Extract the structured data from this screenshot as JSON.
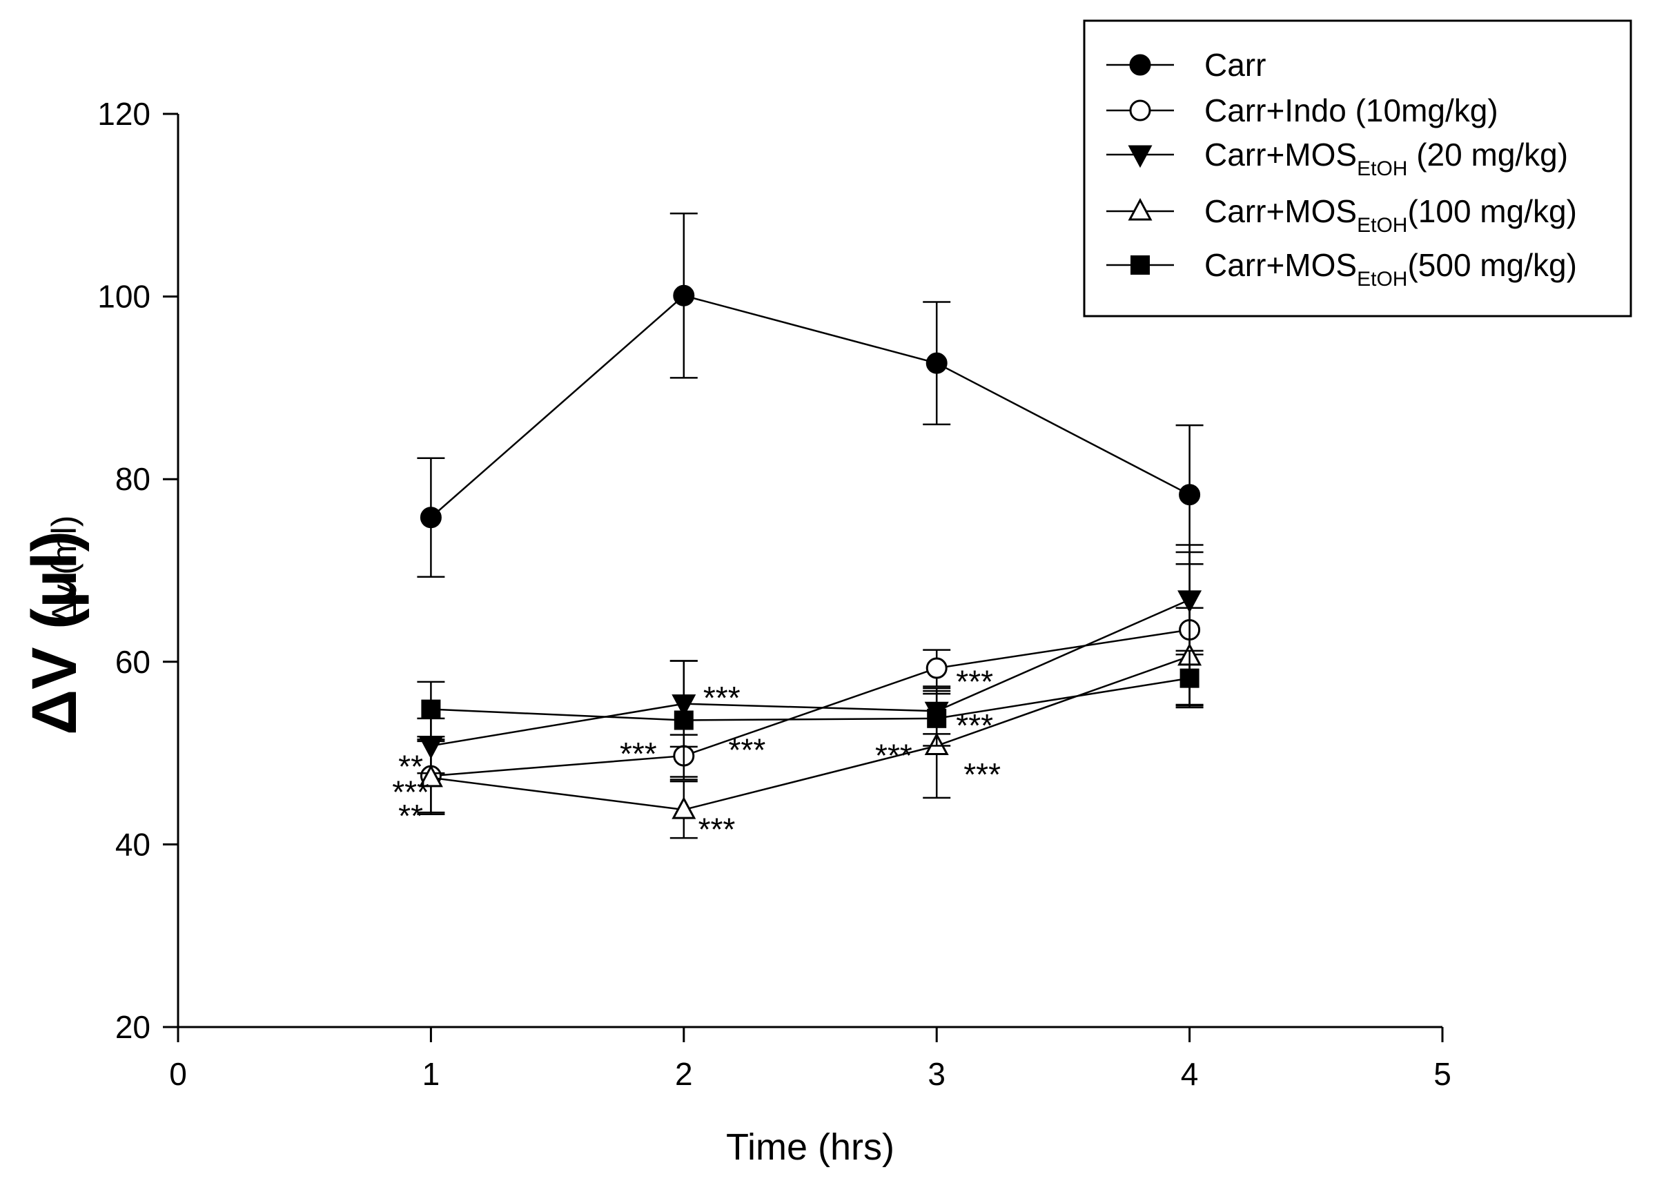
{
  "chart_data": {
    "type": "line",
    "title": "",
    "xlabel": "Time (hrs)",
    "ylabel_main": "ΔV (μl)",
    "ylabel_secondary": "Δv (ml)",
    "xlim": [
      0,
      5
    ],
    "ylim": [
      20,
      120
    ],
    "xticks": [
      "0",
      "1",
      "2",
      "3",
      "4",
      "5"
    ],
    "yticks": [
      "20",
      "40",
      "60",
      "80",
      "100",
      "120"
    ],
    "grid": false,
    "legend_position": "top-right",
    "x": [
      1,
      2,
      3,
      4
    ],
    "series": [
      {
        "name": "Carr",
        "legend_parts": [
          "Carr"
        ],
        "marker": "circle-filled",
        "values": [
          75.8,
          100.1,
          92.7,
          78.3
        ],
        "errors": [
          6.5,
          9.0,
          6.7,
          7.6
        ]
      },
      {
        "name": "Carr+Indo (10mg/kg)",
        "legend_parts": [
          "Carr+Indo (10mg/kg)"
        ],
        "marker": "circle-open",
        "values": [
          47.5,
          49.7,
          59.3,
          63.5
        ],
        "errors": [
          4.0,
          2.3,
          2.0,
          8.5
        ]
      },
      {
        "name": "Carr+MOS EtOH (20 mg/kg)",
        "legend_parts": [
          "Carr+MOS",
          "EtOH",
          " (20 mg/kg)"
        ],
        "marker": "triangle-down-filled",
        "values": [
          50.8,
          55.4,
          54.6,
          66.8
        ],
        "errors": [
          3.0,
          4.7,
          2.5,
          6.0
        ]
      },
      {
        "name": "Carr+MOS EtOH (100 mg/kg)",
        "legend_parts": [
          "Carr+MOS",
          "EtOH",
          "(100 mg/kg)"
        ],
        "marker": "triangle-up-open",
        "values": [
          47.3,
          43.8,
          50.8,
          60.6
        ],
        "errors": [
          4.0,
          3.1,
          5.7,
          5.3
        ]
      },
      {
        "name": "Carr+MOS EtOH (500 mg/kg)",
        "legend_parts": [
          "Carr+MOS",
          "EtOH",
          "(500 mg/kg)"
        ],
        "marker": "square-filled",
        "values": [
          54.8,
          53.6,
          53.8,
          58.2
        ],
        "errors": [
          3.0,
          6.5,
          3.0,
          3.0
        ]
      }
    ],
    "annotations": [
      {
        "text": "**",
        "x": 0.92,
        "y": 49.0
      },
      {
        "text": "***",
        "x": 0.92,
        "y": 46.2
      },
      {
        "text": "**",
        "x": 0.92,
        "y": 43.6
      },
      {
        "text": "***",
        "x": 1.82,
        "y": 50.4
      },
      {
        "text": "***",
        "x": 2.15,
        "y": 56.5
      },
      {
        "text": "***",
        "x": 2.25,
        "y": 50.8
      },
      {
        "text": "***",
        "x": 2.13,
        "y": 42.1
      },
      {
        "text": "***",
        "x": 3.15,
        "y": 58.3
      },
      {
        "text": "***",
        "x": 3.15,
        "y": 53.5
      },
      {
        "text": "***",
        "x": 2.83,
        "y": 50.2
      },
      {
        "text": "***",
        "x": 3.18,
        "y": 48.1
      }
    ]
  }
}
